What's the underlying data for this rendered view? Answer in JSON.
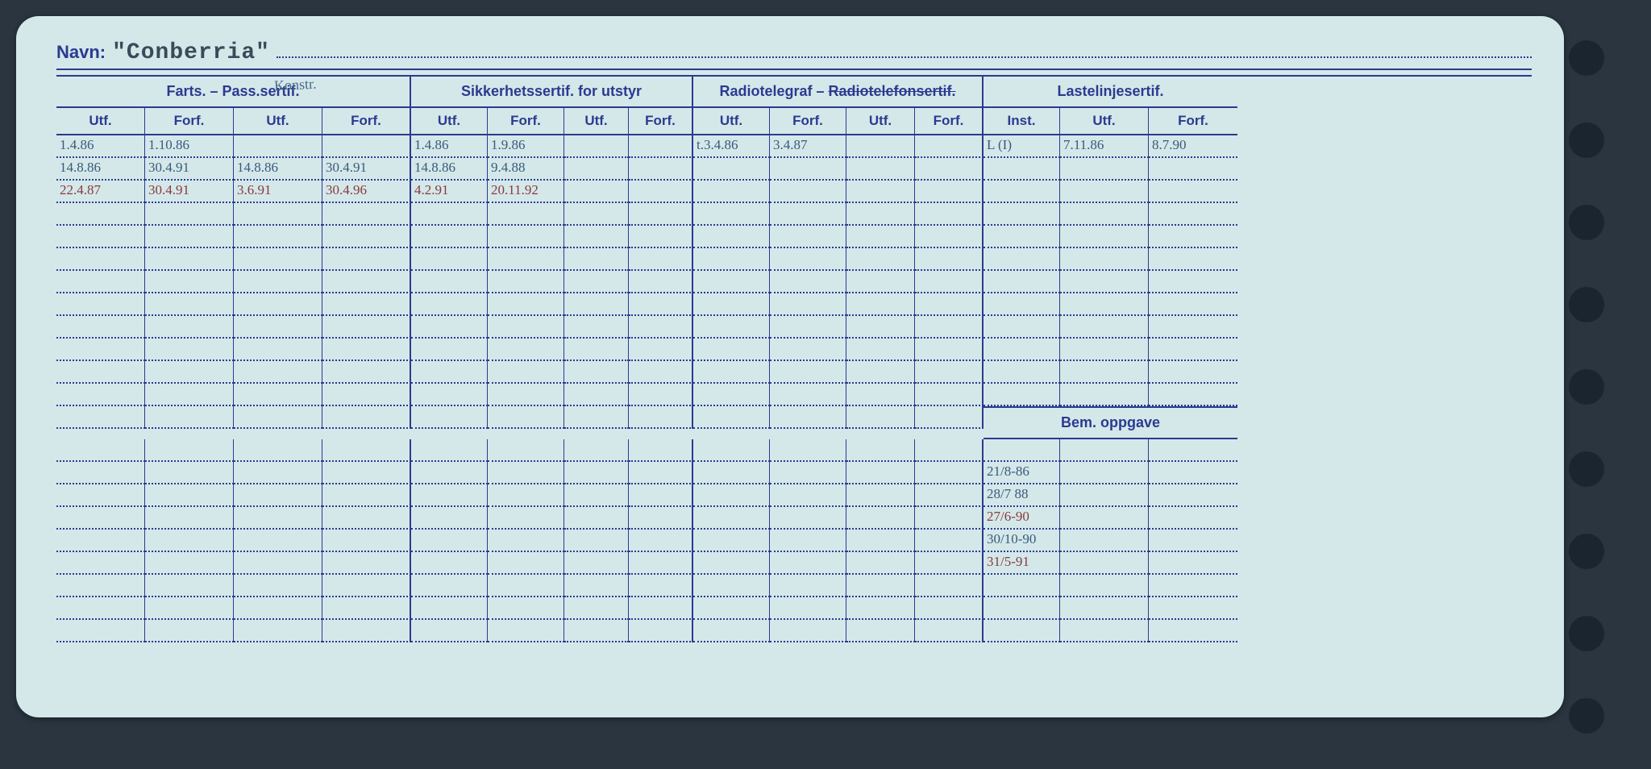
{
  "navn_label": "Navn:",
  "navn_value": "\"Conberria\"",
  "handwriting_note": "Konstr.",
  "groups": {
    "g1": "Farts. – Pass.sertif.",
    "g2": "Sikkerhetssertif. for utstyr",
    "g3": "Radiotelegraf – Radiotelefonsertif.",
    "g3_strike": "Radiotelefonsertif.",
    "g4": "Lastelinjesertif.",
    "bem": "Bem. oppgave"
  },
  "sub": {
    "utf": "Utf.",
    "forf": "Forf.",
    "inst": "Inst."
  },
  "rows": [
    {
      "c0": "1.4.86",
      "c1": "1.10.86",
      "c2": "",
      "c3": "",
      "c4": "1.4.86",
      "c5": "1.9.86",
      "c6": "",
      "c7": "",
      "c8": "t.3.4.86",
      "c9": "3.4.87",
      "c10": "",
      "c11": "",
      "c12": "L (I)",
      "c13": "7.11.86",
      "c14": "8.7.90",
      "red": false
    },
    {
      "c0": "14.8.86",
      "c1": "30.4.91",
      "c2": "14.8.86",
      "c3": "30.4.91",
      "c4": "14.8.86",
      "c5": "9.4.88",
      "c6": "",
      "c7": "",
      "c8": "",
      "c9": "",
      "c10": "",
      "c11": "",
      "c12": "",
      "c13": "",
      "c14": "",
      "red": false
    },
    {
      "c0": "22.4.87",
      "c1": "30.4.91",
      "c2": "3.6.91",
      "c3": "30.4.96",
      "c4": "4.2.91",
      "c5": "20.11.92",
      "c6": "",
      "c7": "",
      "c8": "",
      "c9": "",
      "c10": "",
      "c11": "",
      "c12": "",
      "c13": "",
      "c14": "",
      "red": true
    }
  ],
  "empty_rows_upper": 9,
  "bem_rows": [
    {
      "c12": "21/8-86",
      "c13": "",
      "c14": "",
      "red": false
    },
    {
      "c12": "28/7 88",
      "c13": "",
      "c14": "",
      "red": false
    },
    {
      "c12": "27/6-90",
      "c13": "",
      "c14": "",
      "red": true
    },
    {
      "c12": "30/10-90",
      "c13": "",
      "c14": "",
      "red": false
    },
    {
      "c12": "31/5-91",
      "c13": "",
      "c14": "",
      "red": true
    }
  ],
  "colors": {
    "card_bg": "#d4e8ea",
    "line": "#2b3a8f",
    "text_blue": "#3a5a7a",
    "text_red": "#8b3a3a",
    "page_bg": "#2a3540"
  }
}
